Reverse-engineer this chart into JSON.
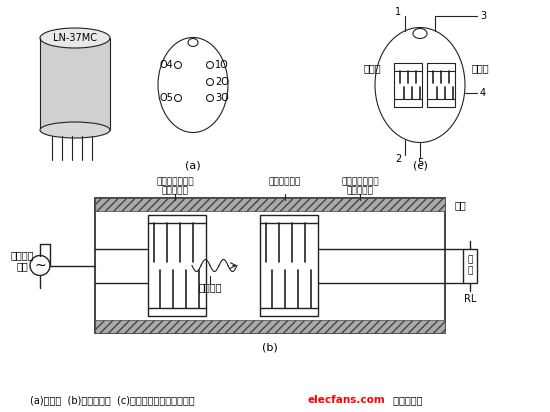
{
  "bg_color": "#ffffff",
  "caption": "(a)外形；  (b)内部结构；  (c)电气图形符号及文字符号",
  "caption_red": "elecfans.com",
  "caption_suffix": " 电子发烧友",
  "label_a": "(a)",
  "label_b": "(b)",
  "label_c": "(c)",
  "component_label": "LN-37MC",
  "input_label": "输入端",
  "output_label": "输出端",
  "zhongpin": "中频信号\n输入",
  "output_right": "输出",
  "fuze": "负\n载",
  "rl": "RL",
  "shengbiao": "声表面波",
  "label_top_left1": "（输出换能器）",
  "label_top_left2": "叉指换能器",
  "label_top_right1": "（输出换能器）",
  "label_top_right2": "叉指换能器",
  "label_top_mid": "压电晶体基片",
  "line_color": "#222222",
  "lw_default": 0.8,
  "lw_thick": 1.2,
  "lw_med": 1.0
}
